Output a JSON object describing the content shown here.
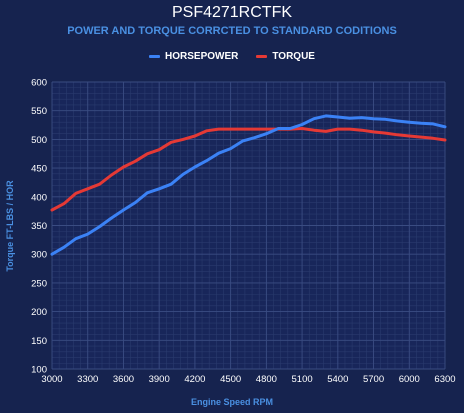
{
  "chart_data": {
    "type": "line",
    "title": "PSF4271RCTFK",
    "subtitle": "POWER AND TORQUE CORRCTED TO STANDARD CODITIONS",
    "xlabel": "Engine Speed RPM",
    "ylabel": "Torque FT-LBS / HOR",
    "xlim": [
      3000,
      6300
    ],
    "ylim": [
      100,
      600
    ],
    "x_ticks": [
      3000,
      3300,
      3600,
      3900,
      4200,
      4500,
      4800,
      5100,
      5400,
      5700,
      6000,
      6300
    ],
    "y_ticks": [
      100,
      150,
      200,
      250,
      300,
      350,
      400,
      450,
      500,
      550,
      600
    ],
    "grid": true,
    "legend_position": "top-center",
    "x": [
      3000,
      3100,
      3200,
      3300,
      3400,
      3500,
      3600,
      3700,
      3800,
      3900,
      4000,
      4100,
      4200,
      4300,
      4400,
      4500,
      4600,
      4700,
      4800,
      4900,
      5000,
      5100,
      5200,
      5300,
      5400,
      5500,
      5600,
      5700,
      5800,
      5900,
      6000,
      6100,
      6200,
      6300
    ],
    "series": [
      {
        "name": "HORSEPOWER",
        "color": "#3b82f6",
        "values": [
          300,
          312,
          327,
          335,
          348,
          363,
          377,
          390,
          407,
          414,
          422,
          439,
          452,
          463,
          476,
          484,
          497,
          503,
          510,
          519,
          519,
          526,
          536,
          541,
          539,
          537,
          538,
          536,
          535,
          532,
          530,
          528,
          527,
          522
        ]
      },
      {
        "name": "TORQUE",
        "color": "#e53935",
        "values": [
          377,
          388,
          406,
          414,
          422,
          438,
          452,
          462,
          475,
          482,
          495,
          500,
          506,
          515,
          518,
          518,
          518,
          518,
          518,
          518,
          518,
          519,
          516,
          514,
          518,
          518,
          516,
          513,
          511,
          508,
          506,
          504,
          502,
          499
        ]
      }
    ]
  }
}
